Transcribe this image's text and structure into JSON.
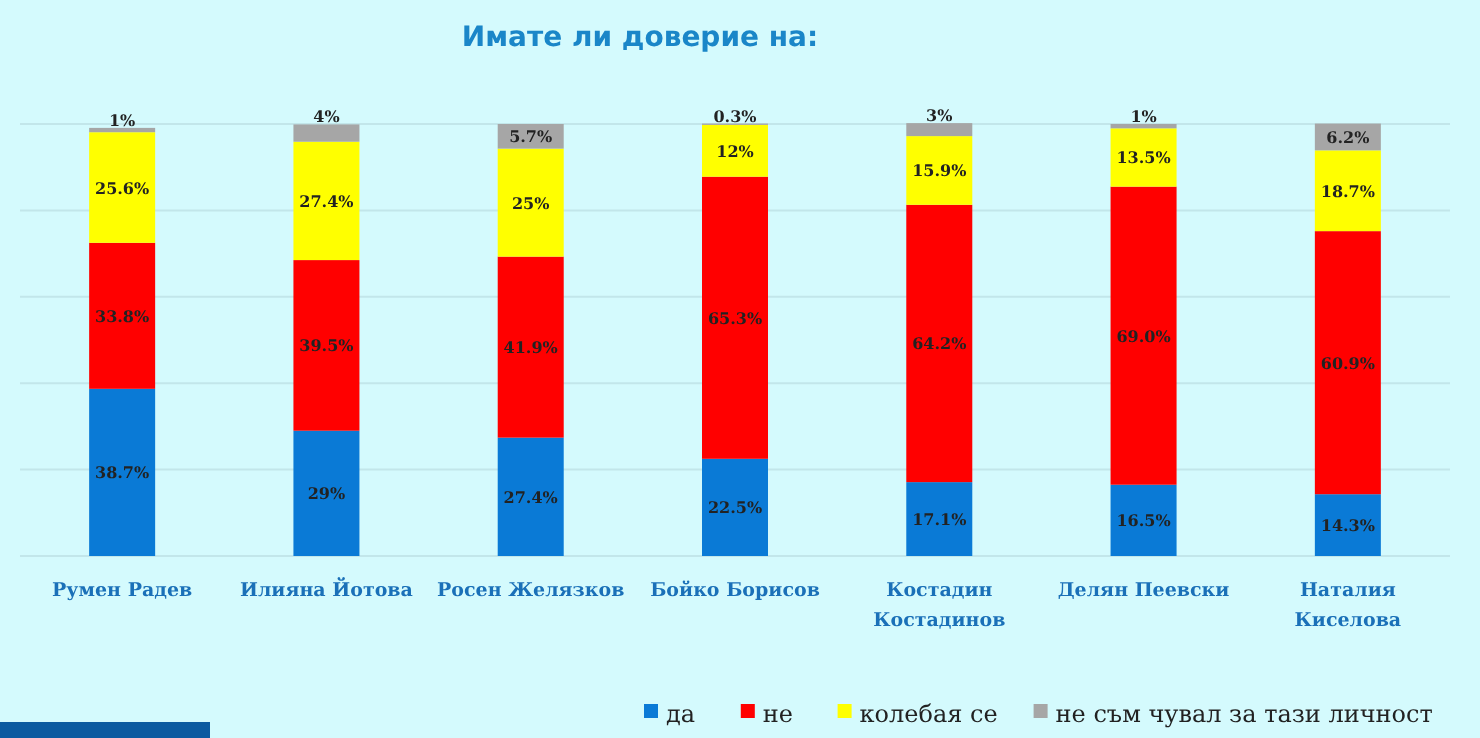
{
  "chart_data": {
    "type": "bar",
    "title": "Имате  ли доверие на:",
    "stacked": true,
    "categories": [
      "Румен Радев",
      "Илияна Йотова",
      "Росен Желязков",
      "Бойко Борисов",
      "Костадин Костадинов",
      "Делян Пеевски",
      "Наталия Киселова"
    ],
    "series": [
      {
        "name": "да",
        "color": "#0a7ad6",
        "values": [
          38.7,
          29,
          27.4,
          22.5,
          17.1,
          16.5,
          14.3
        ],
        "value_labels": [
          "38.7%",
          "29%",
          "27.4%",
          "22.5%",
          "17.1%",
          "16.5%",
          "14.3%"
        ]
      },
      {
        "name": "не",
        "color": "#ff0000",
        "values": [
          33.8,
          39.5,
          41.9,
          65.3,
          64.2,
          69.0,
          60.9
        ],
        "value_labels": [
          "33.8%",
          "39.5%",
          "41.9%",
          "65.3%",
          "64.2%",
          "69.0%",
          "60.9%"
        ]
      },
      {
        "name": "колебая се",
        "color": "#ffff00",
        "values": [
          25.6,
          27.4,
          25,
          12,
          15.9,
          13.5,
          18.7
        ],
        "value_labels": [
          "25.6%",
          "27.4%",
          "25%",
          "12%",
          "15.9%",
          "13.5%",
          "18.7%"
        ]
      },
      {
        "name": "не съм чувал за тази личност",
        "color": "#a6a6a6",
        "values": [
          1,
          4,
          5.7,
          0.3,
          3,
          1,
          6.2
        ],
        "value_labels": [
          "1%",
          "4%",
          "5.7%",
          "0.3%",
          "3%",
          "1%",
          "6.2%"
        ]
      }
    ],
    "ylim": [
      0,
      100
    ],
    "yticks": [
      {
        "value": 0,
        "label": null
      },
      {
        "value": 20,
        "label": null
      },
      {
        "value": 40,
        "label": null
      },
      {
        "value": 60,
        "label": null
      },
      {
        "value": 80,
        "label": null
      },
      {
        "value": 100,
        "label": null
      }
    ],
    "tick_labels": "x",
    "grid": "y",
    "legend": "bottom"
  }
}
